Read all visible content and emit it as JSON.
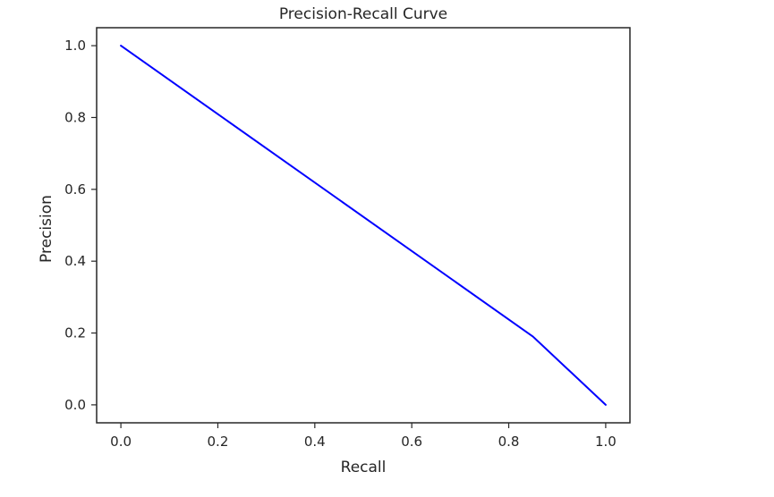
{
  "chart_data": {
    "type": "line",
    "title": "Precision-Recall Curve",
    "xlabel": "Recall",
    "ylabel": "Precision",
    "xlim": [
      -0.05,
      1.05
    ],
    "ylim": [
      -0.05,
      1.05
    ],
    "x_ticks": [
      0.0,
      0.2,
      0.4,
      0.6,
      0.8,
      1.0
    ],
    "x_tick_labels": [
      "0.0",
      "0.2",
      "0.4",
      "0.6",
      "0.8",
      "1.0"
    ],
    "y_ticks": [
      0.0,
      0.2,
      0.4,
      0.6,
      0.8,
      1.0
    ],
    "y_tick_labels": [
      "0.0",
      "0.2",
      "0.4",
      "0.6",
      "0.8",
      "1.0"
    ],
    "grid": false,
    "series": [
      {
        "color": "#0000ff",
        "x": [
          0.0,
          0.85,
          1.0
        ],
        "y": [
          1.0,
          0.19,
          0.0
        ]
      }
    ]
  }
}
